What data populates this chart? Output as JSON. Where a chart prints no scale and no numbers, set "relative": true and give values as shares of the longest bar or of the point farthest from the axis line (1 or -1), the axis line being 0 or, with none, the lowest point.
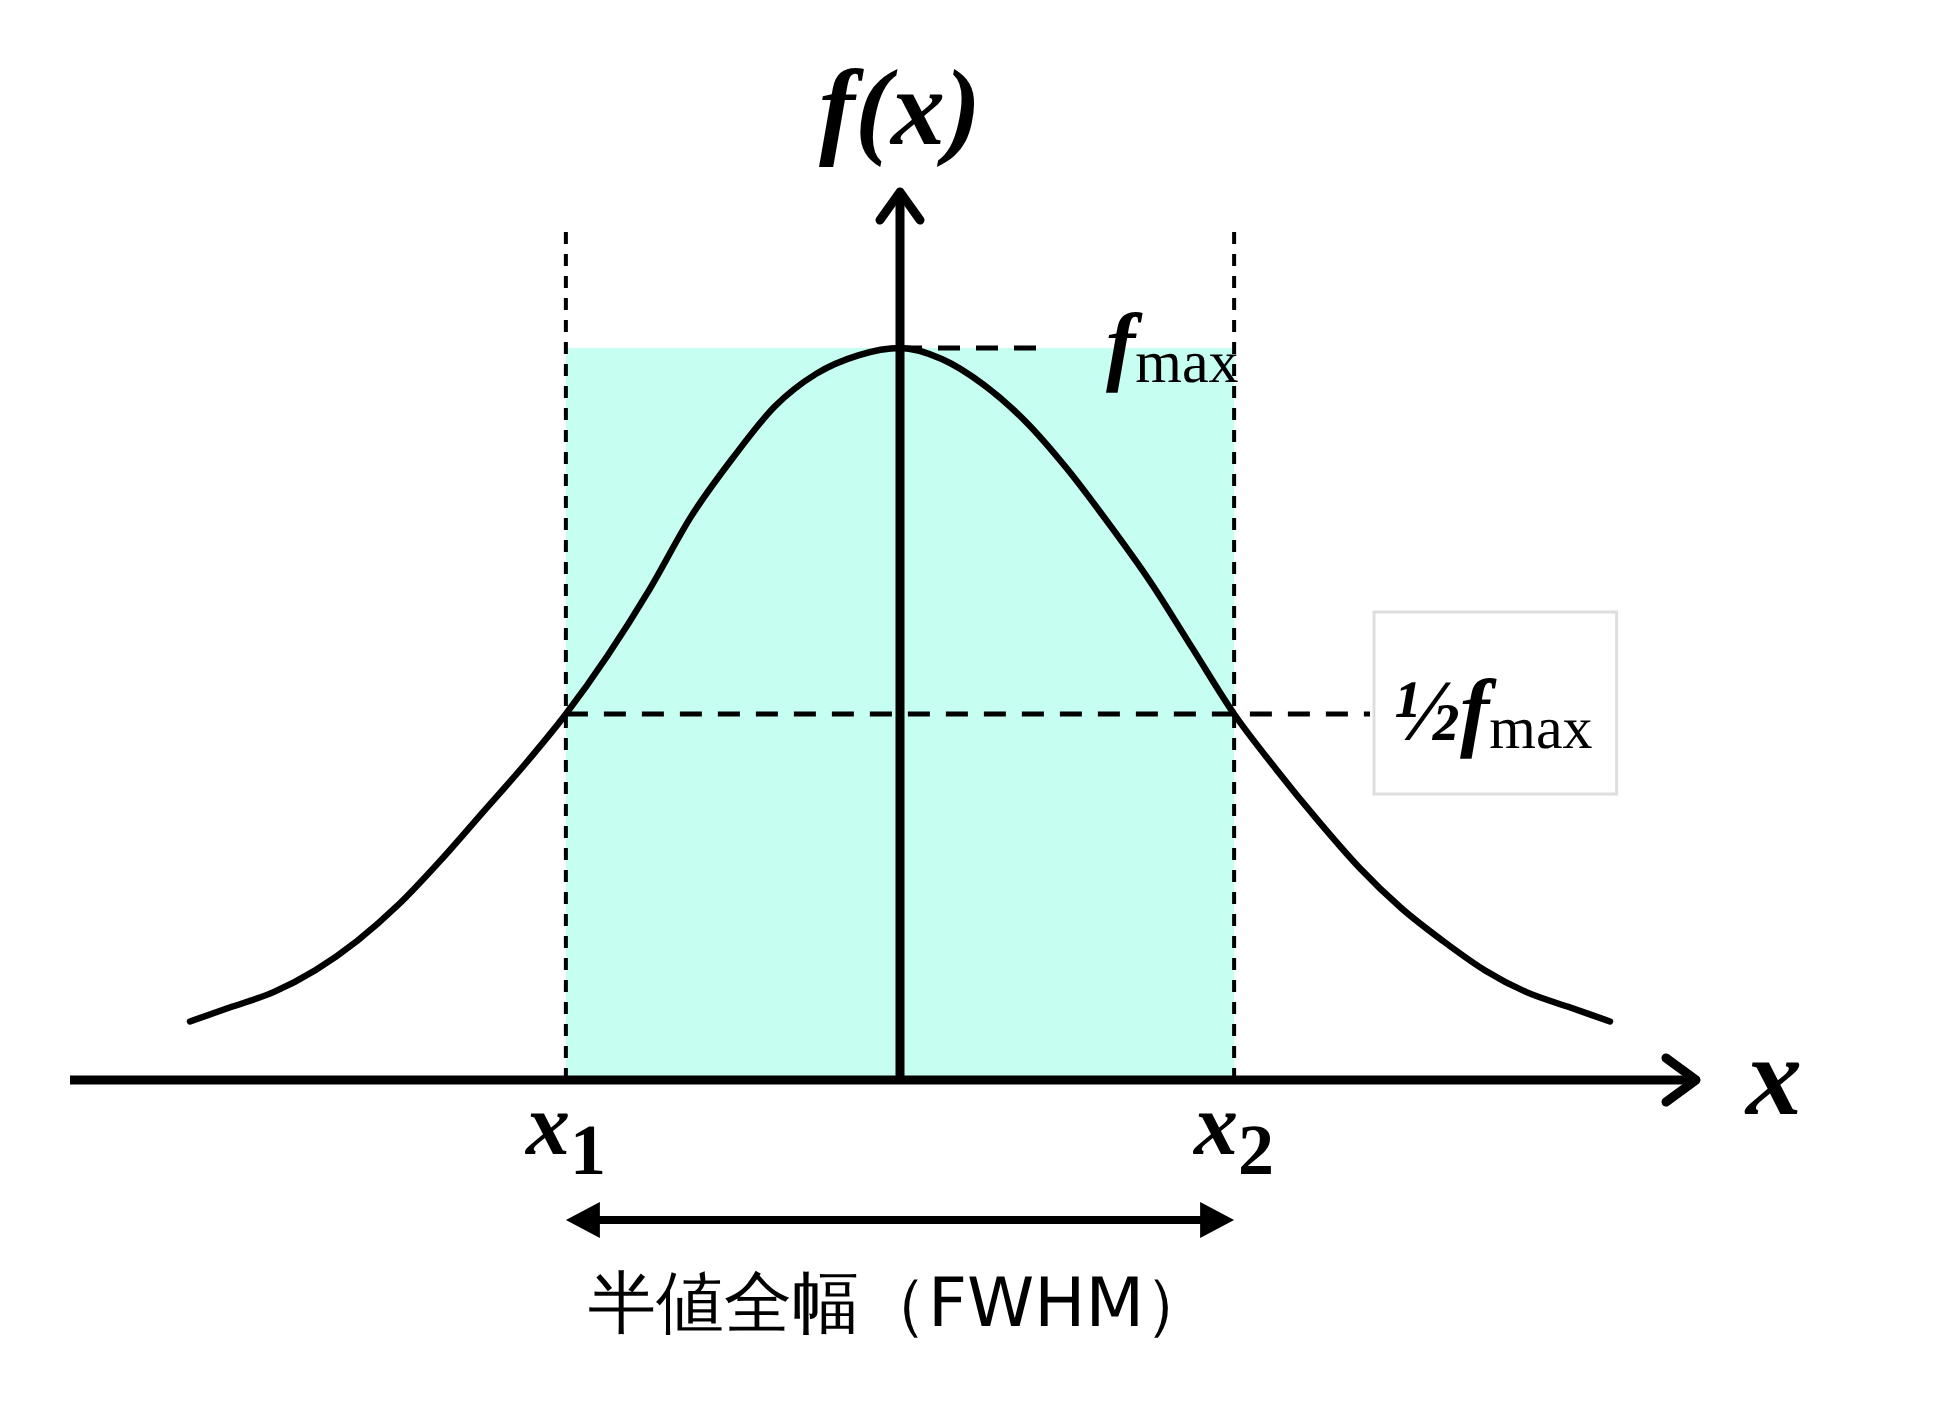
{
  "chart_data": {
    "type": "line",
    "relative": true,
    "xlabel": "x",
    "ylabel": "f(x)",
    "categories": [
      null,
      null,
      null,
      null,
      null,
      null,
      null,
      null,
      null,
      "x$_{1}$",
      null,
      null,
      null,
      null,
      null,
      null,
      null,
      null,
      null,
      null,
      null,
      null,
      null,
      null,
      null,
      "x$_{2}$",
      null,
      null,
      null,
      null,
      null,
      null,
      null,
      null,
      null
    ],
    "values": [
      0.08,
      0.1,
      0.12,
      0.15,
      0.19,
      0.24,
      0.3,
      0.365,
      0.43,
      0.5,
      0.58,
      0.67,
      0.77,
      0.85,
      0.92,
      0.965,
      0.99,
      1,
      0.985,
      0.95,
      0.9,
      0.835,
      0.76,
      0.68,
      0.59,
      0.5,
      0.425,
      0.355,
      0.29,
      0.235,
      0.19,
      0.15,
      0.12,
      0.1,
      0.08
    ],
    "color": "#000000",
    "ref_lines": [
      {
        "axis": "x",
        "value": "x$_{1}$",
        "line_style": "dashed",
        "color": "#000000"
      },
      {
        "axis": "x",
        "value": "x$_{2}$",
        "line_style": "dashed",
        "color": "#000000"
      },
      {
        "axis": "y",
        "value": 1,
        "label": "f$_{max}$",
        "line_style": "dashed",
        "color": "#000000"
      },
      {
        "axis": "y",
        "value": 0.5,
        "label": "½f$_{max}$",
        "line_style": "dashed",
        "color": "#000000"
      }
    ],
    "bands": [
      {
        "axis": "x",
        "from": "x$_{1}$",
        "to": "x$_{2}$",
        "label": "半値全幅（FWHM）",
        "color": "#c6fff1"
      }
    ]
  }
}
